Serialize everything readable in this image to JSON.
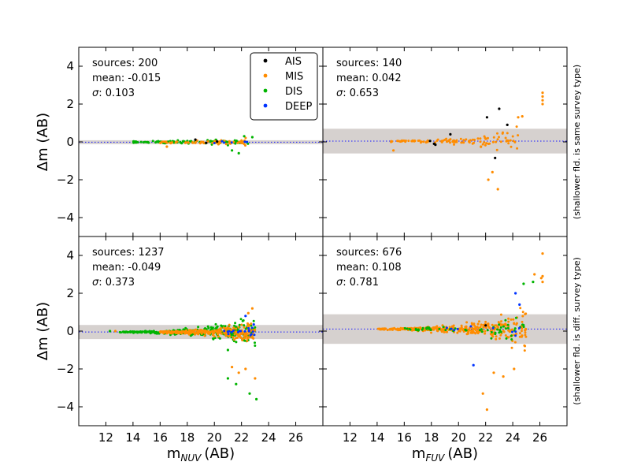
{
  "chart_data": {
    "type": "scatter",
    "legend": {
      "placement": "top-right of top-left panel",
      "entries": [
        {
          "label": "AIS",
          "color": "#000000"
        },
        {
          "label": "MIS",
          "color": "#ff8c00"
        },
        {
          "label": "DIS",
          "color": "#00b400"
        },
        {
          "label": "DEEP",
          "color": "#0033ff"
        }
      ]
    },
    "shared": {
      "ylabel": "Δm (AB)",
      "ylim": [
        -5,
        5
      ],
      "xlim": [
        10,
        28
      ],
      "xticks": [
        "12",
        "14",
        "16",
        "18",
        "20",
        "22",
        "24",
        "26"
      ],
      "yticks": [
        "4",
        "2",
        "0",
        "−2",
        "−4"
      ],
      "xlabel_nuv_main": "m",
      "xlabel_nuv_sub": "NUV",
      "xlabel_fuv_main": "m",
      "xlabel_fuv_sub": "FUV",
      "xlabel_unit": "(AB)",
      "row_label_top": "(shallower fld. is same survey type)",
      "row_label_bottom": "(shallower fld. is diff. survey type)"
    },
    "panels": [
      {
        "id": "top-left",
        "band": "NUV",
        "sources_text": "sources: 200",
        "mean_text": "mean: -0.015",
        "sigma_label": "σ",
        "sigma_value": ": 0.103",
        "mean": -0.015,
        "sigma": 0.103,
        "clusters": [
          {
            "color": "#00b400",
            "n": 90,
            "x": [
              14,
              22.5
            ],
            "spread0": 0.05,
            "spread1": 0.25
          },
          {
            "color": "#ff8c00",
            "n": 60,
            "x": [
              16,
              22.5
            ],
            "spread0": 0.05,
            "spread1": 0.2
          },
          {
            "color": "#0033ff",
            "n": 6,
            "x": [
              20,
              22.5
            ],
            "spread0": 0.05,
            "spread1": 0.1
          }
        ],
        "points": [
          {
            "x": 18.6,
            "y": 0.12,
            "color": "#000000"
          },
          {
            "x": 19.4,
            "y": -0.05,
            "color": "#000000"
          },
          {
            "x": 20.2,
            "y": 0.02,
            "color": "#000000"
          },
          {
            "x": 16.5,
            "y": -0.25,
            "color": "#ff8c00"
          },
          {
            "x": 21.8,
            "y": -0.6,
            "color": "#00b400"
          },
          {
            "x": 21.3,
            "y": -0.45,
            "color": "#00b400"
          },
          {
            "x": 22.8,
            "y": 0.25,
            "color": "#00b400"
          },
          {
            "x": 22.2,
            "y": 0.3,
            "color": "#00b400"
          }
        ]
      },
      {
        "id": "top-right",
        "band": "FUV",
        "sources_text": "sources: 140",
        "mean_text": "mean: 0.042",
        "sigma_label": "σ",
        "sigma_value": ": 0.653",
        "mean": 0.042,
        "sigma": 0.653,
        "clusters": [
          {
            "color": "#ff8c00",
            "n": 70,
            "x": [
              15,
              21
            ],
            "spread0": 0.05,
            "spread1": 0.2
          },
          {
            "color": "#ff8c00",
            "n": 45,
            "x": [
              21,
              24.5
            ],
            "spread0": 0.3,
            "spread1": 1.0
          }
        ],
        "points": [
          {
            "x": 17.9,
            "y": 0.05,
            "color": "#000000"
          },
          {
            "x": 18.2,
            "y": -0.1,
            "color": "#000000"
          },
          {
            "x": 18.3,
            "y": -0.15,
            "color": "#000000"
          },
          {
            "x": 19.4,
            "y": 0.4,
            "color": "#000000"
          },
          {
            "x": 22.1,
            "y": 1.3,
            "color": "#000000"
          },
          {
            "x": 23.0,
            "y": 1.75,
            "color": "#000000"
          },
          {
            "x": 23.6,
            "y": 0.9,
            "color": "#000000"
          },
          {
            "x": 22.7,
            "y": -0.85,
            "color": "#000000"
          },
          {
            "x": 26.2,
            "y": 2.6,
            "color": "#ff8c00"
          },
          {
            "x": 26.2,
            "y": 2.4,
            "color": "#ff8c00"
          },
          {
            "x": 26.2,
            "y": 2.0,
            "color": "#ff8c00"
          },
          {
            "x": 26.2,
            "y": 2.2,
            "color": "#ff8c00"
          },
          {
            "x": 22.9,
            "y": -2.5,
            "color": "#ff8c00"
          },
          {
            "x": 22.2,
            "y": -2.0,
            "color": "#ff8c00"
          },
          {
            "x": 22.5,
            "y": -1.6,
            "color": "#ff8c00"
          },
          {
            "x": 24.4,
            "y": 1.3,
            "color": "#ff8c00"
          },
          {
            "x": 24.7,
            "y": 1.35,
            "color": "#ff8c00"
          },
          {
            "x": 15.2,
            "y": -0.45,
            "color": "#ff8c00"
          }
        ]
      },
      {
        "id": "bottom-left",
        "band": "NUV",
        "sources_text": "sources: 1237",
        "mean_text": "mean: -0.049",
        "sigma_label": "σ",
        "sigma_value": ": 0.373",
        "mean": -0.049,
        "sigma": 0.373,
        "clusters": [
          {
            "color": "#00b400",
            "n": 330,
            "x": [
              13,
              23
            ],
            "spread0": 0.03,
            "spread1": 0.6
          },
          {
            "color": "#ff8c00",
            "n": 300,
            "x": [
              16,
              23
            ],
            "spread0": 0.05,
            "spread1": 0.55
          },
          {
            "color": "#0033ff",
            "n": 18,
            "x": [
              20.5,
              23
            ],
            "spread0": 0.1,
            "spread1": 0.4
          }
        ],
        "points": [
          {
            "x": 21.0,
            "y": -2.5,
            "color": "#00b400"
          },
          {
            "x": 21.6,
            "y": -2.8,
            "color": "#00b400"
          },
          {
            "x": 22.6,
            "y": -3.3,
            "color": "#00b400"
          },
          {
            "x": 23.1,
            "y": -3.6,
            "color": "#00b400"
          },
          {
            "x": 21.8,
            "y": -2.2,
            "color": "#ff8c00"
          },
          {
            "x": 22.3,
            "y": -2.0,
            "color": "#ff8c00"
          },
          {
            "x": 21.3,
            "y": -1.9,
            "color": "#ff8c00"
          },
          {
            "x": 23.0,
            "y": -2.5,
            "color": "#ff8c00"
          },
          {
            "x": 22.8,
            "y": 1.2,
            "color": "#ff8c00"
          },
          {
            "x": 22.5,
            "y": 0.95,
            "color": "#ff8c00"
          },
          {
            "x": 22.3,
            "y": 0.8,
            "color": "#0033ff"
          },
          {
            "x": 22.9,
            "y": 0.35,
            "color": "#0033ff"
          },
          {
            "x": 21.0,
            "y": -1.0,
            "color": "#00b400"
          },
          {
            "x": 12.3,
            "y": 0.0,
            "color": "#00b400"
          },
          {
            "x": 12.7,
            "y": 0.0,
            "color": "#ff8c00"
          }
        ]
      },
      {
        "id": "bottom-right",
        "band": "FUV",
        "sources_text": "sources: 676",
        "mean_text": "mean: 0.108",
        "sigma_label": "σ",
        "sigma_value": ": 0.781",
        "mean": 0.108,
        "sigma": 0.781,
        "clusters": [
          {
            "color": "#ff8c00",
            "n": 200,
            "x": [
              14,
              20.5
            ],
            "spread0": 0.03,
            "spread1": 0.25
          },
          {
            "color": "#ff8c00",
            "n": 160,
            "x": [
              20.5,
              25
            ],
            "spread0": 0.3,
            "spread1": 1.2
          },
          {
            "color": "#00b400",
            "n": 60,
            "x": [
              16,
              25
            ],
            "spread0": 0.05,
            "spread1": 0.8
          },
          {
            "color": "#0033ff",
            "n": 10,
            "x": [
              19,
              25
            ],
            "spread0": 0.1,
            "spread1": 0.6
          }
        ],
        "points": [
          {
            "x": 26.2,
            "y": 4.1,
            "color": "#ff8c00"
          },
          {
            "x": 26.2,
            "y": 2.9,
            "color": "#ff8c00"
          },
          {
            "x": 26.2,
            "y": 2.6,
            "color": "#ff8c00"
          },
          {
            "x": 26.1,
            "y": 2.8,
            "color": "#ff8c00"
          },
          {
            "x": 25.6,
            "y": 3.0,
            "color": "#ff8c00"
          },
          {
            "x": 24.8,
            "y": 2.5,
            "color": "#00b400"
          },
          {
            "x": 25.5,
            "y": 2.6,
            "color": "#00b400"
          },
          {
            "x": 22.1,
            "y": -4.15,
            "color": "#ff8c00"
          },
          {
            "x": 21.8,
            "y": -3.3,
            "color": "#ff8c00"
          },
          {
            "x": 22.6,
            "y": -2.2,
            "color": "#ff8c00"
          },
          {
            "x": 23.3,
            "y": -2.4,
            "color": "#ff8c00"
          },
          {
            "x": 24.1,
            "y": -2.0,
            "color": "#ff8c00"
          },
          {
            "x": 21.1,
            "y": -1.8,
            "color": "#0033ff"
          },
          {
            "x": 24.2,
            "y": 2.0,
            "color": "#0033ff"
          },
          {
            "x": 24.5,
            "y": 1.4,
            "color": "#0033ff"
          },
          {
            "x": 22.0,
            "y": 0.3,
            "color": "#000000"
          }
        ]
      }
    ]
  }
}
